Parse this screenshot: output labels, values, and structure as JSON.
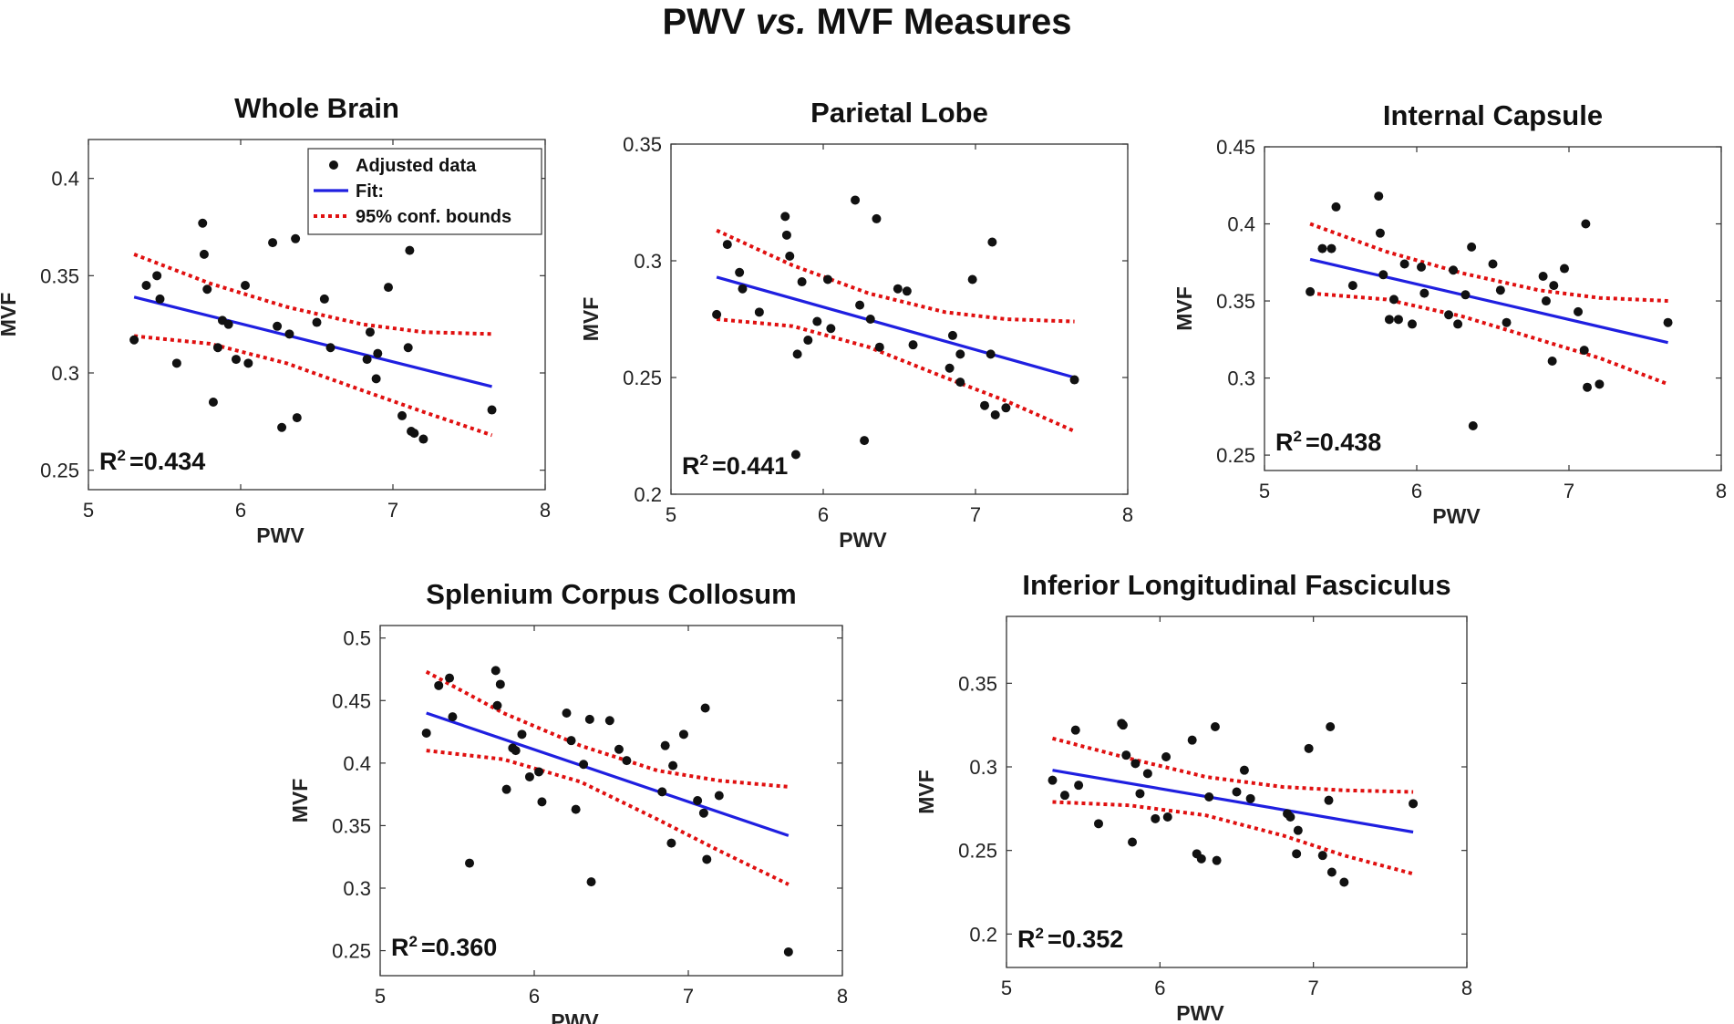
{
  "title": {
    "prefix": "PWV",
    "vs": "vs.",
    "suffix": "MVF Measures"
  },
  "legend": {
    "adjusted": "Adjusted data",
    "fit": "Fit:",
    "conf": "95% conf. bounds"
  },
  "colors": {
    "points": "#111111",
    "fit": "#1f1fe0",
    "conf": "#e01010",
    "axes": "#333333"
  },
  "chart_data": [
    {
      "type": "scatter",
      "title": "Whole Brain",
      "xlabel": "PWV",
      "ylabel": "MVF",
      "xlim": [
        5,
        8
      ],
      "ylim": [
        0.24,
        0.42
      ],
      "xticks": [
        5,
        6,
        7,
        8
      ],
      "yticks": [
        0.25,
        0.3,
        0.35,
        0.4
      ],
      "xtick_labels": [
        "5",
        "6",
        "7",
        "8"
      ],
      "ytick_labels": [
        "0.25",
        "0.3",
        "0.35",
        "0.4"
      ],
      "r2_label": "R",
      "r2_sup": "2",
      "r2_value": "=0.434",
      "show_legend": true,
      "points": [
        [
          5.3,
          0.317
        ],
        [
          5.38,
          0.345
        ],
        [
          5.45,
          0.35
        ],
        [
          5.47,
          0.338
        ],
        [
          5.58,
          0.305
        ],
        [
          5.75,
          0.377
        ],
        [
          5.76,
          0.361
        ],
        [
          5.78,
          0.343
        ],
        [
          5.82,
          0.285
        ],
        [
          5.85,
          0.313
        ],
        [
          5.88,
          0.327
        ],
        [
          5.92,
          0.325
        ],
        [
          5.97,
          0.307
        ],
        [
          6.03,
          0.345
        ],
        [
          6.05,
          0.305
        ],
        [
          6.21,
          0.367
        ],
        [
          6.24,
          0.324
        ],
        [
          6.27,
          0.272
        ],
        [
          6.32,
          0.32
        ],
        [
          6.36,
          0.369
        ],
        [
          6.37,
          0.277
        ],
        [
          6.5,
          0.326
        ],
        [
          6.55,
          0.338
        ],
        [
          6.59,
          0.313
        ],
        [
          6.83,
          0.307
        ],
        [
          6.85,
          0.321
        ],
        [
          6.89,
          0.297
        ],
        [
          6.9,
          0.31
        ],
        [
          6.97,
          0.344
        ],
        [
          7.06,
          0.278
        ],
        [
          7.1,
          0.313
        ],
        [
          7.11,
          0.363
        ],
        [
          7.12,
          0.27
        ],
        [
          7.14,
          0.269
        ],
        [
          7.2,
          0.266
        ],
        [
          7.65,
          0.281
        ]
      ],
      "fit": [
        [
          5.3,
          0.339
        ],
        [
          7.65,
          0.293
        ]
      ],
      "upper": [
        [
          5.3,
          0.361
        ],
        [
          5.8,
          0.346
        ],
        [
          6.3,
          0.334
        ],
        [
          6.8,
          0.325
        ],
        [
          7.2,
          0.321
        ],
        [
          7.65,
          0.32
        ]
      ],
      "lower": [
        [
          5.3,
          0.319
        ],
        [
          5.8,
          0.315
        ],
        [
          6.3,
          0.305
        ],
        [
          6.8,
          0.291
        ],
        [
          7.2,
          0.28
        ],
        [
          7.65,
          0.268
        ]
      ]
    },
    {
      "type": "scatter",
      "title": "Parietal Lobe",
      "xlabel": "PWV",
      "ylabel": "MVF",
      "xlim": [
        5,
        8
      ],
      "ylim": [
        0.2,
        0.35
      ],
      "xticks": [
        5,
        6,
        7,
        8
      ],
      "yticks": [
        0.2,
        0.25,
        0.3,
        0.35
      ],
      "xtick_labels": [
        "5",
        "6",
        "7",
        "8"
      ],
      "ytick_labels": [
        "0.2",
        "0.25",
        "0.3",
        "0.35"
      ],
      "r2_label": "R",
      "r2_sup": "2",
      "r2_value": "=0.441",
      "show_legend": false,
      "points": [
        [
          5.3,
          0.277
        ],
        [
          5.37,
          0.307
        ],
        [
          5.45,
          0.295
        ],
        [
          5.47,
          0.288
        ],
        [
          5.58,
          0.278
        ],
        [
          5.75,
          0.319
        ],
        [
          5.76,
          0.311
        ],
        [
          5.78,
          0.302
        ],
        [
          5.82,
          0.217
        ],
        [
          5.83,
          0.26
        ],
        [
          5.86,
          0.291
        ],
        [
          5.9,
          0.266
        ],
        [
          5.96,
          0.274
        ],
        [
          6.03,
          0.292
        ],
        [
          6.05,
          0.271
        ],
        [
          6.21,
          0.326
        ],
        [
          6.24,
          0.281
        ],
        [
          6.27,
          0.223
        ],
        [
          6.31,
          0.275
        ],
        [
          6.35,
          0.318
        ],
        [
          6.37,
          0.263
        ],
        [
          6.49,
          0.288
        ],
        [
          6.55,
          0.287
        ],
        [
          6.59,
          0.264
        ],
        [
          6.83,
          0.254
        ],
        [
          6.85,
          0.268
        ],
        [
          6.9,
          0.248
        ],
        [
          6.9,
          0.26
        ],
        [
          6.98,
          0.292
        ],
        [
          7.06,
          0.238
        ],
        [
          7.1,
          0.26
        ],
        [
          7.11,
          0.308
        ],
        [
          7.13,
          0.234
        ],
        [
          7.2,
          0.237
        ],
        [
          7.65,
          0.249
        ]
      ],
      "fit": [
        [
          5.3,
          0.293
        ],
        [
          7.65,
          0.25
        ]
      ],
      "upper": [
        [
          5.3,
          0.313
        ],
        [
          5.8,
          0.298
        ],
        [
          6.3,
          0.286
        ],
        [
          6.8,
          0.278
        ],
        [
          7.2,
          0.275
        ],
        [
          7.65,
          0.274
        ]
      ],
      "lower": [
        [
          5.3,
          0.275
        ],
        [
          5.8,
          0.272
        ],
        [
          6.3,
          0.263
        ],
        [
          6.8,
          0.25
        ],
        [
          7.2,
          0.24
        ],
        [
          7.65,
          0.227
        ]
      ]
    },
    {
      "type": "scatter",
      "title": "Internal Capsule",
      "xlabel": "PWV",
      "ylabel": "MVF",
      "xlim": [
        5,
        8
      ],
      "ylim": [
        0.24,
        0.45
      ],
      "xticks": [
        5,
        6,
        7,
        8
      ],
      "yticks": [
        0.25,
        0.3,
        0.35,
        0.4,
        0.45
      ],
      "xtick_labels": [
        "5",
        "6",
        "7",
        "8"
      ],
      "ytick_labels": [
        "0.25",
        "0.3",
        "0.35",
        "0.4",
        "0.45"
      ],
      "r2_label": "R",
      "r2_sup": "2",
      "r2_value": "=0.438",
      "show_legend": false,
      "points": [
        [
          5.3,
          0.356
        ],
        [
          5.38,
          0.384
        ],
        [
          5.44,
          0.384
        ],
        [
          5.47,
          0.411
        ],
        [
          5.58,
          0.36
        ],
        [
          5.75,
          0.418
        ],
        [
          5.76,
          0.394
        ],
        [
          5.78,
          0.367
        ],
        [
          5.82,
          0.338
        ],
        [
          5.85,
          0.351
        ],
        [
          5.88,
          0.338
        ],
        [
          5.92,
          0.374
        ],
        [
          5.97,
          0.335
        ],
        [
          6.03,
          0.372
        ],
        [
          6.05,
          0.355
        ],
        [
          6.21,
          0.341
        ],
        [
          6.24,
          0.37
        ],
        [
          6.27,
          0.335
        ],
        [
          6.32,
          0.354
        ],
        [
          6.36,
          0.385
        ],
        [
          6.37,
          0.269
        ],
        [
          6.5,
          0.374
        ],
        [
          6.55,
          0.357
        ],
        [
          6.59,
          0.336
        ],
        [
          6.83,
          0.366
        ],
        [
          6.85,
          0.35
        ],
        [
          6.89,
          0.311
        ],
        [
          6.9,
          0.36
        ],
        [
          6.97,
          0.371
        ],
        [
          7.06,
          0.343
        ],
        [
          7.1,
          0.318
        ],
        [
          7.11,
          0.4
        ],
        [
          7.12,
          0.294
        ],
        [
          7.2,
          0.296
        ],
        [
          7.65,
          0.336
        ]
      ],
      "fit": [
        [
          5.3,
          0.377
        ],
        [
          7.65,
          0.323
        ]
      ],
      "upper": [
        [
          5.3,
          0.4
        ],
        [
          5.8,
          0.382
        ],
        [
          6.3,
          0.368
        ],
        [
          6.8,
          0.357
        ],
        [
          7.2,
          0.352
        ],
        [
          7.65,
          0.35
        ]
      ],
      "lower": [
        [
          5.3,
          0.355
        ],
        [
          5.8,
          0.351
        ],
        [
          6.3,
          0.34
        ],
        [
          6.8,
          0.325
        ],
        [
          7.2,
          0.313
        ],
        [
          7.65,
          0.296
        ]
      ]
    },
    {
      "type": "scatter",
      "title": "Splenium Corpus Collosum",
      "xlabel": "PWV",
      "ylabel": "MVF",
      "xlim": [
        5,
        8
      ],
      "ylim": [
        0.23,
        0.51
      ],
      "xticks": [
        5,
        6,
        7,
        8
      ],
      "yticks": [
        0.25,
        0.3,
        0.35,
        0.4,
        0.45,
        0.5
      ],
      "xtick_labels": [
        "5",
        "6",
        "7",
        "8"
      ],
      "ytick_labels": [
        "0.25",
        "0.3",
        "0.35",
        "0.4",
        "0.45",
        "0.5"
      ],
      "r2_label": "R",
      "r2_sup": "2",
      "r2_value": "=0.360",
      "show_legend": false,
      "points": [
        [
          5.3,
          0.424
        ],
        [
          5.38,
          0.462
        ],
        [
          5.45,
          0.468
        ],
        [
          5.47,
          0.437
        ],
        [
          5.58,
          0.32
        ],
        [
          5.75,
          0.474
        ],
        [
          5.76,
          0.446
        ],
        [
          5.78,
          0.463
        ],
        [
          5.82,
          0.379
        ],
        [
          5.86,
          0.412
        ],
        [
          5.88,
          0.41
        ],
        [
          5.92,
          0.423
        ],
        [
          5.97,
          0.389
        ],
        [
          6.03,
          0.393
        ],
        [
          6.05,
          0.369
        ],
        [
          6.21,
          0.44
        ],
        [
          6.24,
          0.418
        ],
        [
          6.27,
          0.363
        ],
        [
          6.32,
          0.399
        ],
        [
          6.36,
          0.435
        ],
        [
          6.37,
          0.305
        ],
        [
          6.49,
          0.434
        ],
        [
          6.55,
          0.411
        ],
        [
          6.6,
          0.402
        ],
        [
          6.83,
          0.377
        ],
        [
          6.85,
          0.414
        ],
        [
          6.89,
          0.336
        ],
        [
          6.9,
          0.398
        ],
        [
          6.97,
          0.423
        ],
        [
          7.06,
          0.37
        ],
        [
          7.1,
          0.36
        ],
        [
          7.11,
          0.444
        ],
        [
          7.12,
          0.323
        ],
        [
          7.2,
          0.374
        ],
        [
          7.65,
          0.249
        ]
      ],
      "fit": [
        [
          5.3,
          0.44
        ],
        [
          7.65,
          0.342
        ]
      ],
      "upper": [
        [
          5.3,
          0.473
        ],
        [
          5.8,
          0.44
        ],
        [
          6.3,
          0.414
        ],
        [
          6.8,
          0.394
        ],
        [
          7.2,
          0.386
        ],
        [
          7.65,
          0.381
        ]
      ],
      "lower": [
        [
          5.3,
          0.41
        ],
        [
          5.8,
          0.403
        ],
        [
          6.3,
          0.385
        ],
        [
          6.8,
          0.355
        ],
        [
          7.2,
          0.33
        ],
        [
          7.65,
          0.303
        ]
      ]
    },
    {
      "type": "scatter",
      "title": "Inferior Longitudinal Fasciculus",
      "xlabel": "PWV",
      "ylabel": "MVF",
      "xlim": [
        5,
        8
      ],
      "ylim": [
        0.18,
        0.39
      ],
      "xticks": [
        5,
        6,
        7,
        8
      ],
      "yticks": [
        0.2,
        0.25,
        0.3,
        0.35
      ],
      "xtick_labels": [
        "5",
        "6",
        "7",
        "8"
      ],
      "ytick_labels": [
        "0.2",
        "0.25",
        "0.3",
        "0.35"
      ],
      "r2_label": "R",
      "r2_sup": "2",
      "r2_value": "=0.352",
      "show_legend": false,
      "points": [
        [
          5.3,
          0.292
        ],
        [
          5.38,
          0.283
        ],
        [
          5.45,
          0.322
        ],
        [
          5.47,
          0.289
        ],
        [
          5.6,
          0.266
        ],
        [
          5.75,
          0.326
        ],
        [
          5.76,
          0.325
        ],
        [
          5.78,
          0.307
        ],
        [
          5.82,
          0.255
        ],
        [
          5.84,
          0.302
        ],
        [
          5.87,
          0.284
        ],
        [
          5.92,
          0.296
        ],
        [
          5.97,
          0.269
        ],
        [
          6.04,
          0.306
        ],
        [
          6.05,
          0.27
        ],
        [
          6.21,
          0.316
        ],
        [
          6.24,
          0.248
        ],
        [
          6.27,
          0.245
        ],
        [
          6.32,
          0.282
        ],
        [
          6.36,
          0.324
        ],
        [
          6.37,
          0.244
        ],
        [
          6.5,
          0.285
        ],
        [
          6.55,
          0.298
        ],
        [
          6.59,
          0.281
        ],
        [
          6.83,
          0.272
        ],
        [
          6.85,
          0.27
        ],
        [
          6.89,
          0.248
        ],
        [
          6.9,
          0.262
        ],
        [
          6.97,
          0.311
        ],
        [
          7.06,
          0.247
        ],
        [
          7.1,
          0.28
        ],
        [
          7.11,
          0.324
        ],
        [
          7.12,
          0.237
        ],
        [
          7.2,
          0.231
        ],
        [
          7.65,
          0.278
        ]
      ],
      "fit": [
        [
          5.3,
          0.298
        ],
        [
          7.65,
          0.261
        ]
      ],
      "upper": [
        [
          5.3,
          0.317
        ],
        [
          5.8,
          0.305
        ],
        [
          6.3,
          0.294
        ],
        [
          6.8,
          0.288
        ],
        [
          7.2,
          0.286
        ],
        [
          7.65,
          0.285
        ]
      ],
      "lower": [
        [
          5.3,
          0.279
        ],
        [
          5.8,
          0.277
        ],
        [
          6.3,
          0.271
        ],
        [
          6.8,
          0.259
        ],
        [
          7.2,
          0.247
        ],
        [
          7.65,
          0.236
        ]
      ]
    }
  ]
}
